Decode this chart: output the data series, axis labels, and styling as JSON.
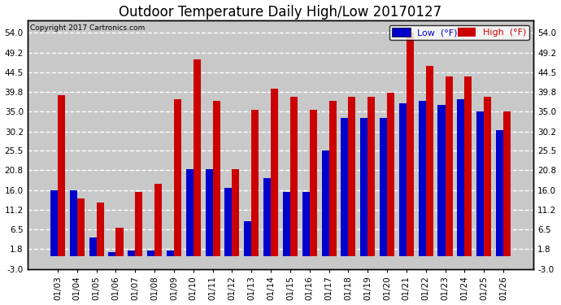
{
  "title": "Outdoor Temperature Daily High/Low 20170127",
  "copyright": "Copyright 2017 Cartronics.com",
  "dates": [
    "01/03",
    "01/04",
    "01/05",
    "01/06",
    "01/07",
    "01/08",
    "01/09",
    "01/10",
    "01/11",
    "01/12",
    "01/13",
    "01/14",
    "01/15",
    "01/16",
    "01/17",
    "01/18",
    "01/19",
    "01/20",
    "01/21",
    "01/22",
    "01/23",
    "01/24",
    "01/25",
    "01/26"
  ],
  "highs": [
    39.0,
    14.0,
    13.0,
    7.0,
    15.5,
    17.5,
    38.0,
    47.5,
    37.5,
    21.0,
    35.5,
    40.5,
    38.5,
    35.5,
    37.5,
    38.5,
    38.5,
    39.5,
    54.0,
    46.0,
    43.5,
    43.5,
    38.5,
    35.0
  ],
  "lows": [
    16.0,
    16.0,
    4.5,
    1.0,
    1.5,
    1.5,
    1.5,
    21.0,
    21.0,
    16.5,
    8.5,
    19.0,
    15.5,
    15.5,
    25.5,
    33.5,
    33.5,
    33.5,
    37.0,
    37.5,
    36.5,
    38.0,
    35.0,
    30.5
  ],
  "low_color": "#0000cc",
  "high_color": "#cc0000",
  "bg_color": "#ffffff",
  "plot_bg": "#c8c8c8",
  "grid_color": "#ffffff",
  "yticks": [
    -3.0,
    1.8,
    6.5,
    11.2,
    16.0,
    20.8,
    25.5,
    30.2,
    35.0,
    39.8,
    44.5,
    49.2,
    54.0
  ],
  "ylim": [
    -3.0,
    57.0
  ],
  "bar_width": 0.38,
  "title_fontsize": 12,
  "tick_fontsize": 7.5,
  "legend_fontsize": 8
}
